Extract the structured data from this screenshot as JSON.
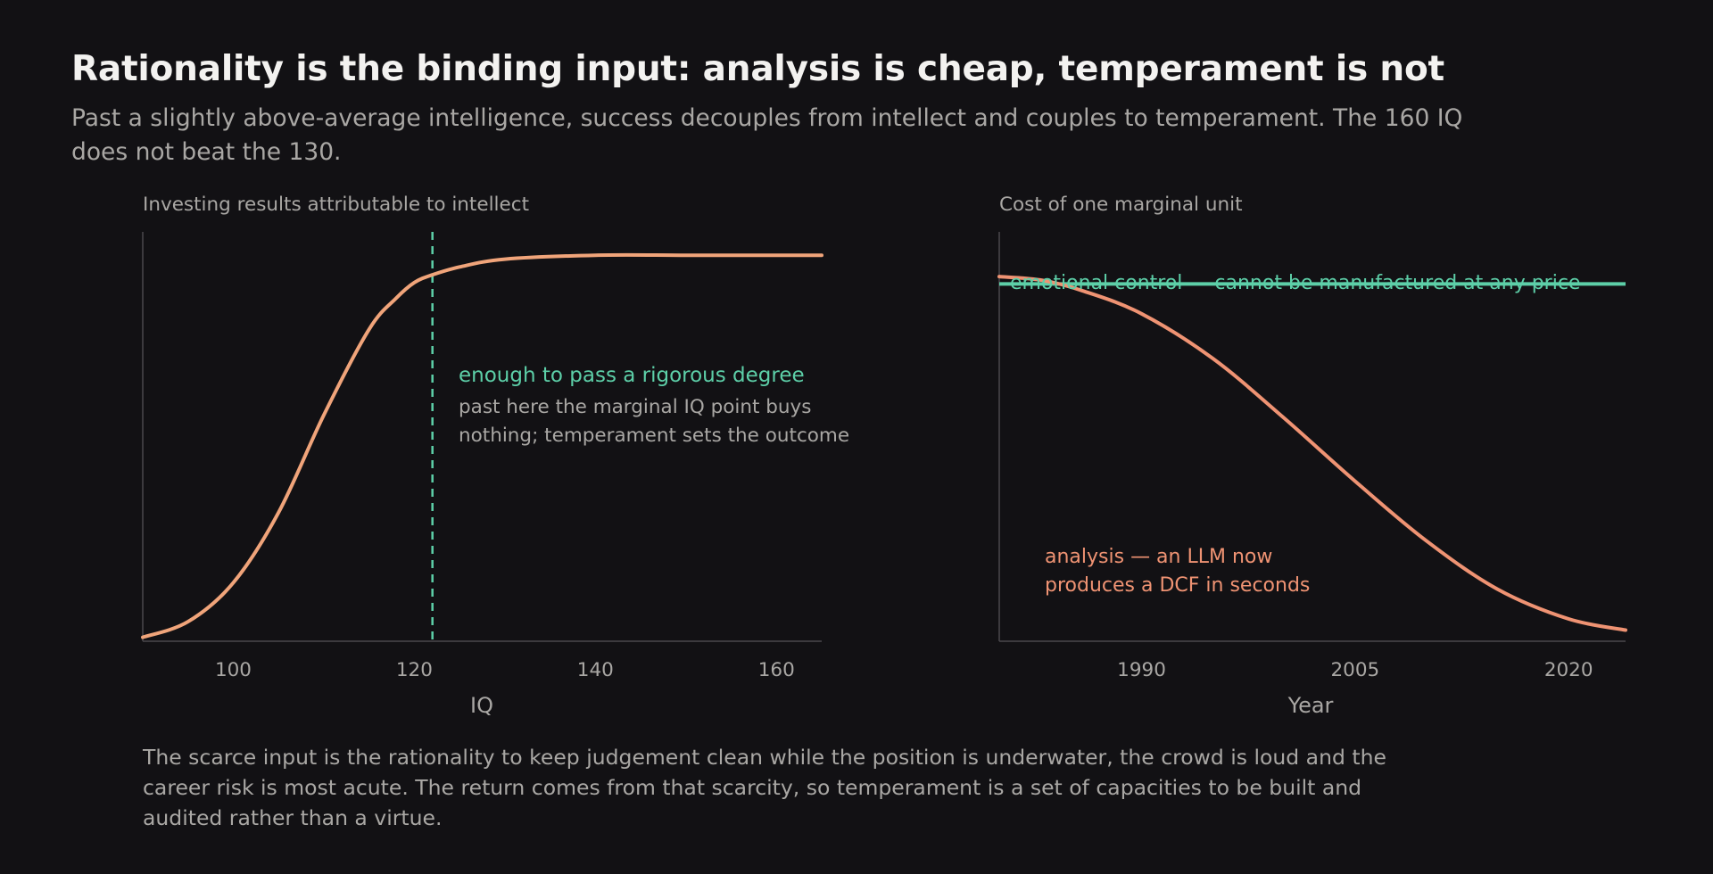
{
  "title": "Rationality is the binding input: analysis is cheap, temperament is not",
  "subtitle": "Past a slightly above-average intelligence, success decouples from intellect and couples to temperament. The 160 IQ does not beat the 130.",
  "footer": "The scarce input is the rationality to keep judgement clean while the position is underwater, the crowd is loud and the career risk is most acute. The return comes from that scarcity, so temperament is a set of capacities to be built and audited rather than a virtue.",
  "colors": {
    "background": "#121114",
    "curve_orange": "#f0a47a",
    "analysis_salmon": "#ef9373",
    "teal": "#5dcfa8",
    "muted_text": "#a9a7a4",
    "axis": "#4a494c"
  },
  "chart_data": [
    {
      "type": "line",
      "title": "Investing results attributable to intellect",
      "xlabel": "IQ",
      "ylabel": "",
      "xlim": [
        90,
        165
      ],
      "ylim": [
        0,
        1.05
      ],
      "xticks": [
        100,
        120,
        140,
        160
      ],
      "grid": false,
      "series": [
        {
          "x": [
            90,
            95,
            100,
            105,
            110,
            115,
            118,
            120,
            122,
            125,
            130,
            140,
            150,
            160,
            165
          ],
          "y": [
            0.01,
            0.05,
            0.15,
            0.33,
            0.58,
            0.8,
            0.88,
            0.92,
            0.94,
            0.96,
            0.98,
            0.99,
            0.99,
            0.99,
            0.99
          ]
        }
      ],
      "threshold": {
        "x": 122,
        "label": "enough to pass a rigorous degree",
        "note": "past here the marginal IQ point buys nothing; temperament sets the outcome"
      }
    },
    {
      "type": "line",
      "title": "Cost of one marginal unit",
      "xlabel": "Year",
      "ylabel": "",
      "xlim": [
        1980,
        2024
      ],
      "ylim": [
        0,
        1.1
      ],
      "xticks": [
        1990,
        2005,
        2020
      ],
      "grid": false,
      "series": [
        {
          "name": "emotional control — cannot be manufactured at any price",
          "x": [
            1980,
            2024
          ],
          "y": [
            0.96,
            0.96
          ]
        },
        {
          "name": "analysis — an LLM now produces a DCF in seconds",
          "x": [
            1980,
            1983,
            1986,
            1990,
            1995,
            2000,
            2005,
            2010,
            2015,
            2020,
            2024
          ],
          "y": [
            0.98,
            0.97,
            0.94,
            0.88,
            0.76,
            0.6,
            0.43,
            0.27,
            0.14,
            0.06,
            0.03
          ]
        }
      ]
    }
  ]
}
